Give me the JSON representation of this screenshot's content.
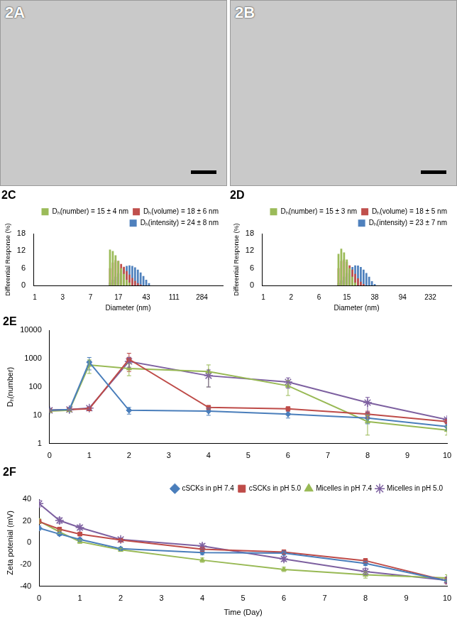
{
  "images": [
    {
      "label": "2A"
    },
    {
      "label": "2B"
    }
  ],
  "chart_data": [
    {
      "type": "bar",
      "title": "2C",
      "x_label": "Diameter (nm)",
      "y_label": "Differential Response (%)",
      "categories": [
        "1",
        null,
        null,
        null,
        null,
        null,
        null,
        null,
        null,
        null,
        "3",
        null,
        null,
        null,
        null,
        null,
        null,
        null,
        null,
        null,
        "7",
        null,
        null,
        null,
        null,
        null,
        null,
        null,
        null,
        null,
        "17",
        null,
        null,
        null,
        null,
        null,
        null,
        null,
        null,
        null,
        "43",
        null,
        null,
        null,
        null,
        null,
        null,
        null,
        null,
        null,
        "111",
        null,
        null,
        null,
        null,
        null,
        null,
        null,
        null,
        null,
        "284",
        null,
        null,
        null,
        null,
        null,
        null,
        null
      ],
      "series": [
        {
          "name": "Dₕ(intensity) = 24 ± 8 nm",
          "color": "#4f81bd",
          "values": [
            0,
            0,
            0,
            0,
            0,
            0,
            0,
            0,
            0,
            0,
            0,
            0,
            0,
            0,
            0,
            0,
            0,
            0,
            0,
            0,
            0,
            0,
            0,
            0,
            0,
            0,
            0,
            1,
            2,
            3,
            4.2,
            5.3,
            6.2,
            6.8,
            7,
            6.8,
            6.3,
            5.5,
            4.5,
            3.3,
            2,
            0.8,
            0,
            0,
            0,
            0,
            0,
            0,
            0,
            0,
            0,
            0,
            0,
            0,
            0,
            0,
            0,
            0,
            0,
            0,
            0,
            0,
            0,
            0,
            0,
            0,
            0,
            0
          ]
        },
        {
          "name": "Dₕ(volume) = 18 ± 6 nm",
          "color": "#c0504d",
          "values": [
            0,
            0,
            0,
            0,
            0,
            0,
            0,
            0,
            0,
            0,
            0,
            0,
            0,
            0,
            0,
            0,
            0,
            0,
            0,
            0,
            0,
            0,
            0,
            0,
            0,
            0,
            0,
            6,
            8,
            8.8,
            8.5,
            7.5,
            6.5,
            5,
            3.8,
            2.6,
            1.6,
            0.8,
            0.3,
            0,
            0,
            0,
            0,
            0,
            0,
            0,
            0,
            0,
            0,
            0,
            0,
            0,
            0,
            0,
            0,
            0,
            0,
            0,
            0,
            0,
            0,
            0,
            0,
            0,
            0,
            0,
            0,
            0
          ]
        },
        {
          "name": "Dₕ(number) = 15 ± 4 nm",
          "color": "#9bbb59",
          "values": [
            0,
            0,
            0,
            0,
            0,
            0,
            0,
            0,
            0,
            0,
            0,
            0,
            0,
            0,
            0,
            0,
            0,
            0,
            0,
            0,
            0,
            0,
            0,
            0,
            0,
            0,
            0,
            12.5,
            12,
            10.5,
            8.5,
            6,
            4,
            2,
            1,
            0,
            0,
            0,
            0,
            0,
            0,
            0,
            0,
            0,
            0,
            0,
            0,
            0,
            0,
            0,
            0,
            0,
            0,
            0,
            0,
            0,
            0,
            0,
            0,
            0,
            0,
            0,
            0,
            0,
            0,
            0,
            0,
            0
          ]
        }
      ],
      "ylim": [
        0,
        18
      ],
      "yticks": [
        0,
        6,
        12,
        18
      ],
      "grid": false,
      "legend": "upper right"
    },
    {
      "type": "bar",
      "title": "2D",
      "x_label": "Diameter (nm)",
      "y_label": "Differential Response (%)",
      "categories": [
        "1",
        null,
        null,
        null,
        null,
        null,
        null,
        null,
        null,
        null,
        "2",
        null,
        null,
        null,
        null,
        null,
        null,
        null,
        null,
        null,
        "6",
        null,
        null,
        null,
        null,
        null,
        null,
        null,
        null,
        null,
        "15",
        null,
        null,
        null,
        null,
        null,
        null,
        null,
        null,
        null,
        "38",
        null,
        null,
        null,
        null,
        null,
        null,
        null,
        null,
        null,
        "94",
        null,
        null,
        null,
        null,
        null,
        null,
        null,
        null,
        null,
        "232",
        null,
        null,
        null,
        null,
        null,
        null,
        null
      ],
      "series": [
        {
          "name": "Dₕ(intensity) = 23 ± 7 nm",
          "color": "#4f81bd",
          "values": [
            0,
            0,
            0,
            0,
            0,
            0,
            0,
            0,
            0,
            0,
            0,
            0,
            0,
            0,
            0,
            0,
            0,
            0,
            0,
            0,
            0,
            0,
            0,
            0,
            0,
            0,
            0,
            0.8,
            1.8,
            3,
            4.3,
            5.5,
            6.4,
            7,
            6.9,
            6.4,
            5.5,
            4.3,
            3,
            1.5,
            0.5,
            0,
            0,
            0,
            0,
            0,
            0,
            0,
            0,
            0,
            0,
            0,
            0,
            0,
            0,
            0,
            0,
            0,
            0,
            0,
            0,
            0,
            0,
            0,
            0,
            0,
            0,
            0
          ]
        },
        {
          "name": "Dₕ(volume) = 18 ± 5 nm",
          "color": "#c0504d",
          "values": [
            0,
            0,
            0,
            0,
            0,
            0,
            0,
            0,
            0,
            0,
            0,
            0,
            0,
            0,
            0,
            0,
            0,
            0,
            0,
            0,
            0,
            0,
            0,
            0,
            0,
            0,
            0,
            6,
            8.5,
            9,
            8.2,
            7,
            5.5,
            4,
            2.5,
            1.3,
            0.5,
            0,
            0,
            0,
            0,
            0,
            0,
            0,
            0,
            0,
            0,
            0,
            0,
            0,
            0,
            0,
            0,
            0,
            0,
            0,
            0,
            0,
            0,
            0,
            0,
            0,
            0,
            0,
            0,
            0,
            0,
            0
          ]
        },
        {
          "name": "Dₕ(number) = 15 ± 3 nm",
          "color": "#9bbb59",
          "values": [
            0,
            0,
            0,
            0,
            0,
            0,
            0,
            0,
            0,
            0,
            0,
            0,
            0,
            0,
            0,
            0,
            0,
            0,
            0,
            0,
            0,
            0,
            0,
            0,
            0,
            0,
            0,
            11,
            12.8,
            11.5,
            9,
            6,
            3,
            1,
            0,
            0,
            0,
            0,
            0,
            0,
            0,
            0,
            0,
            0,
            0,
            0,
            0,
            0,
            0,
            0,
            0,
            0,
            0,
            0,
            0,
            0,
            0,
            0,
            0,
            0,
            0,
            0,
            0,
            0,
            0,
            0,
            0,
            0
          ]
        }
      ],
      "ylim": [
        0,
        18
      ],
      "yticks": [
        0,
        6,
        12,
        18
      ],
      "grid": false,
      "legend": "upper right"
    },
    {
      "type": "line",
      "title": "2E",
      "y_label": "Dₕ(number)",
      "x": [
        0,
        0.5,
        1,
        2,
        4,
        6,
        8,
        10
      ],
      "series": [
        {
          "color": "#4a7ebb",
          "marker": "diamond",
          "line_style": "solid",
          "values": [
            15,
            16,
            750,
            15,
            14,
            11,
            8,
            4
          ],
          "errors": [
            1,
            1,
            350,
            4,
            4,
            3,
            3,
            1
          ]
        },
        {
          "color": "#be4b48",
          "marker": "square",
          "line_style": "solid",
          "values": [
            15,
            16,
            17,
            950,
            19,
            17,
            11,
            6
          ],
          "errors": [
            1,
            1,
            2,
            600,
            3,
            3,
            3,
            1
          ]
        },
        {
          "color": "#98b954",
          "marker": "triangle",
          "line_style": "solid",
          "values": [
            14,
            15,
            600,
            450,
            350,
            110,
            6,
            3
          ],
          "errors": [
            1,
            1,
            300,
            200,
            250,
            60,
            4,
            1
          ]
        },
        {
          "color": "#7d60a0",
          "marker": "star",
          "line_style": "solid",
          "values": [
            15,
            16,
            18,
            800,
            250,
            150,
            28,
            7
          ],
          "errors": [
            1,
            1,
            2,
            300,
            150,
            60,
            15,
            1
          ]
        }
      ],
      "xlim": [
        0,
        10
      ],
      "xticks": [
        0,
        1,
        2,
        3,
        4,
        5,
        6,
        7,
        8,
        9,
        10
      ],
      "ylim": [
        1,
        10000
      ],
      "yticks": [
        1,
        10,
        100,
        1000,
        10000
      ],
      "log": "y",
      "grid": false
    },
    {
      "type": "line",
      "title": "2F",
      "x_label": "Time (Day)",
      "y_label": "Zeta potenial (mV)",
      "x": [
        0,
        0.5,
        1,
        2,
        4,
        6,
        8,
        10
      ],
      "series": [
        {
          "name": "cSCKs in pH 7.4",
          "color": "#4a7ebb",
          "marker": "diamond",
          "line_style": "solid",
          "values": [
            13.5,
            8,
            3,
            -5.5,
            -9,
            -9.5,
            -19,
            -35
          ],
          "errors": [
            2,
            1.5,
            1.5,
            1.5,
            2,
            2,
            2,
            3
          ]
        },
        {
          "name": "cSCKs in pH 5.0",
          "color": "#be4b48",
          "marker": "square",
          "line_style": "solid",
          "values": [
            19.5,
            12.5,
            8,
            2.5,
            -6,
            -8.5,
            -16.5,
            -35
          ],
          "errors": [
            2,
            1.5,
            1.5,
            1.5,
            2,
            2,
            2,
            3
          ]
        },
        {
          "name": "Micelles in pH 7.4",
          "color": "#98b954",
          "marker": "triangle",
          "line_style": "solid",
          "values": [
            20,
            10,
            1,
            -6.5,
            -16,
            -24.5,
            -29.5,
            -32.5
          ],
          "errors": [
            2,
            1.5,
            1.5,
            1.5,
            2,
            2,
            3,
            3
          ]
        },
        {
          "name": "Micelles in pH 5.0",
          "color": "#7d60a0",
          "marker": "star",
          "line_style": "solid",
          "values": [
            36,
            20.5,
            14,
            3,
            -3,
            -15,
            -26.5,
            -34.5
          ],
          "errors": [
            3,
            2.5,
            2,
            1.5,
            2,
            2,
            3,
            3
          ]
        }
      ],
      "xlim": [
        0,
        10
      ],
      "xticks": [
        0,
        1,
        2,
        3,
        4,
        5,
        6,
        7,
        8,
        9,
        10
      ],
      "ylim": [
        -40,
        40
      ],
      "yticks": [
        -40,
        -20,
        0,
        20,
        40
      ],
      "grid": false,
      "legend": "upper right"
    }
  ]
}
